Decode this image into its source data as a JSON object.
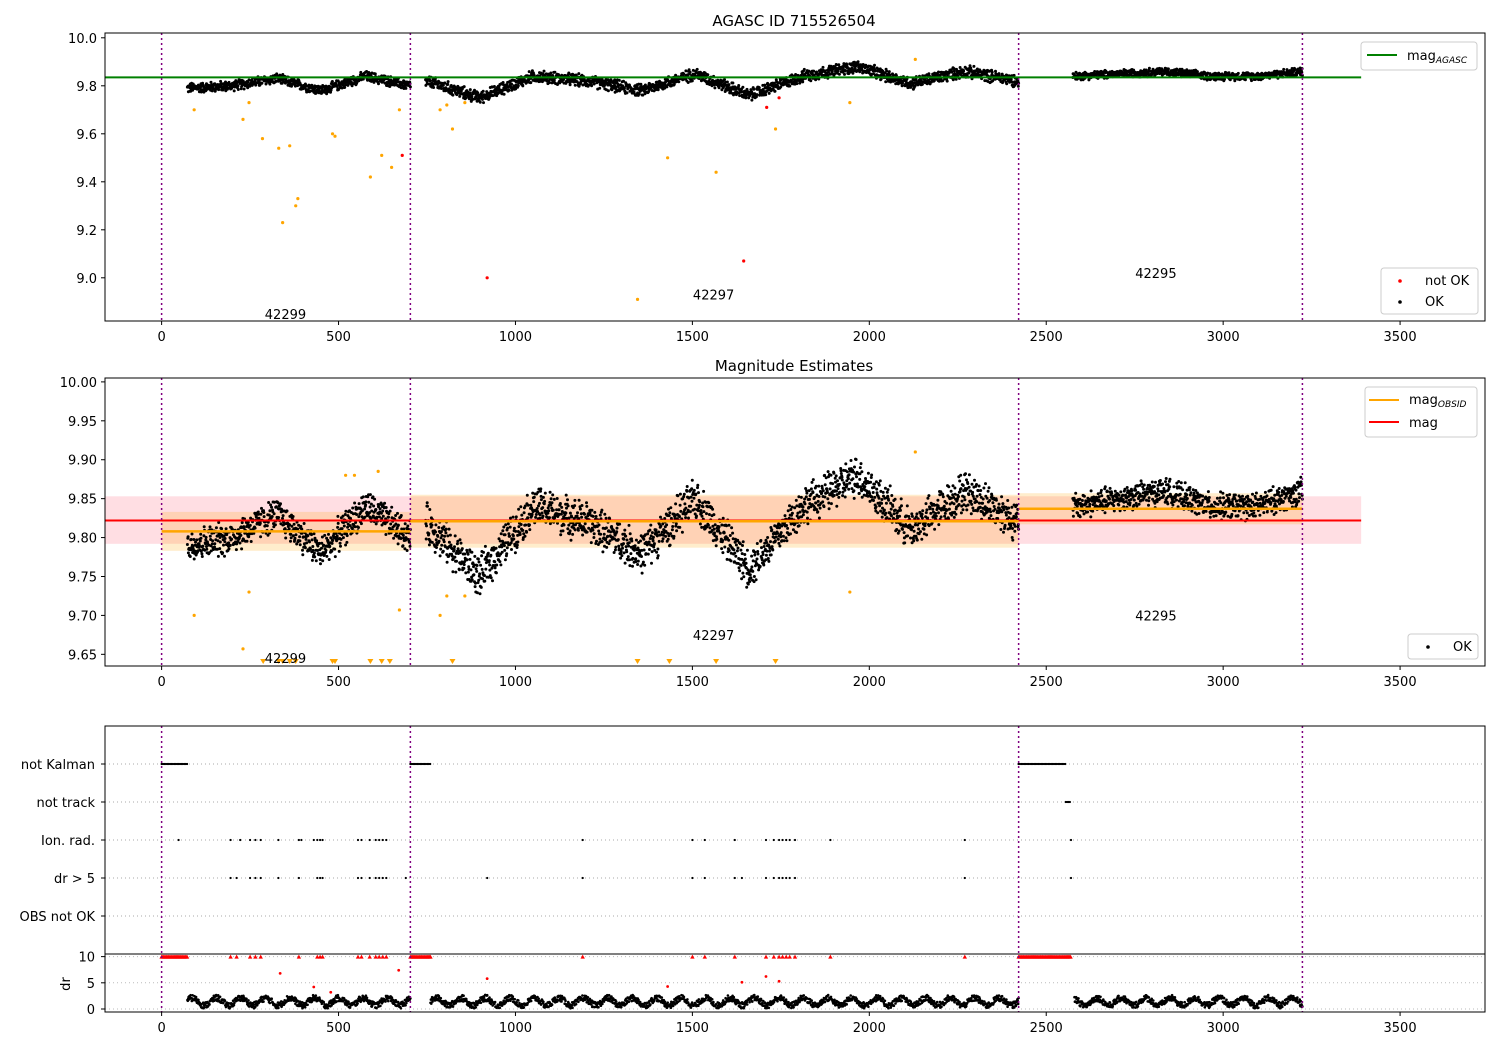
{
  "chart_data": [
    {
      "type": "scatter",
      "title": "AGASC ID 715526504",
      "xlim": [
        -160,
        3740
      ],
      "ylim": [
        8.82,
        10.02
      ],
      "xticks": [
        0,
        500,
        1000,
        1500,
        2000,
        2500,
        3000,
        3500
      ],
      "yticks": [
        9.0,
        9.2,
        9.4,
        9.6,
        9.8,
        10.0
      ],
      "ytick_format": 1,
      "obs_boundaries": [
        0,
        703,
        2422,
        3224
      ],
      "obsids": [
        {
          "label": "42299",
          "x": 350,
          "y": 8.85
        },
        {
          "label": "42297",
          "x": 1560,
          "y": 8.93
        },
        {
          "label": "42295",
          "x": 2810,
          "y": 9.02
        }
      ],
      "mag_agasc": {
        "value": 9.835,
        "x_range": [
          -160,
          3390
        ]
      },
      "legend_upper": [
        {
          "label": "mag",
          "sub": "AGASC",
          "color": "#008000"
        }
      ],
      "legend_lower": [
        {
          "label": "not OK",
          "color": "#ff0000"
        },
        {
          "label": "OK",
          "color": "#000000"
        }
      ],
      "series": [
        {
          "name": "OK",
          "color": "#000000",
          "segments": [
            {
              "x": [
                73,
                703
              ],
              "base": [
                9.79,
                9.8,
                9.83,
                9.78,
                9.84,
                9.8
              ],
              "scatter": 0.025
            },
            {
              "x": [
                746,
                2422
              ],
              "base": [
                9.82,
                9.75,
                9.84,
                9.82,
                9.78,
                9.85,
                9.76,
                9.84,
                9.88,
                9.81,
                9.86,
                9.82
              ],
              "scatter": 0.03
            },
            {
              "x": [
                2575,
                3224
              ],
              "base": [
                9.84,
                9.85,
                9.86,
                9.84,
                9.84,
                9.86
              ],
              "scatter": 0.02
            }
          ]
        },
        {
          "name": "not OK",
          "color": "#ff0000",
          "x": [
            920,
            1645,
            1710,
            1745,
            680
          ],
          "y": [
            9.0,
            9.07,
            9.71,
            9.75,
            9.51
          ]
        },
        {
          "name": "outliers",
          "color": "#ffa500",
          "x": [
            92,
            230,
            247,
            285,
            331,
            342,
            362,
            379,
            385,
            483,
            490,
            590,
            622,
            650,
            672,
            787,
            806,
            822,
            857,
            1345,
            1430,
            1567,
            1735,
            1945,
            2130
          ],
          "y": [
            9.7,
            9.66,
            9.73,
            9.58,
            9.54,
            9.23,
            9.55,
            9.3,
            9.33,
            9.6,
            9.59,
            9.42,
            9.51,
            9.46,
            9.7,
            9.7,
            9.72,
            9.62,
            9.73,
            8.91,
            9.5,
            9.44,
            9.62,
            9.73,
            9.91
          ]
        }
      ]
    },
    {
      "type": "scatter",
      "title": "Magnitude Estimates",
      "xlim": [
        -160,
        3740
      ],
      "ylim": [
        9.635,
        10.005
      ],
      "xticks": [
        0,
        500,
        1000,
        1500,
        2000,
        2500,
        3000,
        3500
      ],
      "yticks": [
        9.65,
        9.7,
        9.75,
        9.8,
        9.85,
        9.9,
        9.95,
        10.0
      ],
      "ytick_format": 2,
      "obs_boundaries": [
        0,
        703,
        2422,
        3224
      ],
      "obsids": [
        {
          "label": "42299",
          "x": 350,
          "y": 9.645
        },
        {
          "label": "42297",
          "x": 1560,
          "y": 9.675
        },
        {
          "label": "42295",
          "x": 2810,
          "y": 9.7
        }
      ],
      "mag": {
        "value": 9.822,
        "band": [
          9.792,
          9.853
        ],
        "x_range": [
          -160,
          3390
        ]
      },
      "mag_obsid": [
        {
          "x": [
            0,
            703
          ],
          "value": 9.808,
          "band": [
            9.783,
            9.833
          ]
        },
        {
          "x": [
            703,
            2422
          ],
          "value": 9.821,
          "band": [
            9.787,
            9.855
          ]
        },
        {
          "x": [
            2422,
            3224
          ],
          "value": 9.837,
          "band": [
            9.817,
            9.857
          ]
        }
      ],
      "legend_upper": [
        {
          "label": "mag",
          "sub": "OBSID",
          "color": "#ffa500"
        },
        {
          "label": "mag",
          "sub": "",
          "color": "#ff0000"
        }
      ],
      "legend_lower": [
        {
          "label": "OK",
          "color": "#000000"
        }
      ],
      "series": [
        {
          "name": "OK",
          "color": "#000000",
          "segments": [
            {
              "x": [
                73,
                703
              ],
              "base": [
                9.79,
                9.8,
                9.83,
                9.78,
                9.84,
                9.8
              ],
              "scatter": 0.025
            },
            {
              "x": [
                746,
                2422
              ],
              "base": [
                9.82,
                9.75,
                9.84,
                9.82,
                9.78,
                9.85,
                9.76,
                9.84,
                9.88,
                9.81,
                9.86,
                9.82
              ],
              "scatter": 0.03
            },
            {
              "x": [
                2575,
                3224
              ],
              "base": [
                9.84,
                9.85,
                9.86,
                9.84,
                9.84,
                9.86
              ],
              "scatter": 0.02
            }
          ]
        },
        {
          "name": "outliers",
          "color": "#ffa500",
          "x": [
            92,
            230,
            247,
            520,
            545,
            612,
            672,
            787,
            806,
            857,
            1945,
            2130
          ],
          "y": [
            9.7,
            9.657,
            9.73,
            9.88,
            9.88,
            9.885,
            9.707,
            9.7,
            9.725,
            9.725,
            9.73,
            9.91
          ]
        },
        {
          "name": "below range",
          "color": "#ffa500",
          "marker": "triangle",
          "x": [
            287,
            331,
            342,
            362,
            379,
            483,
            490,
            590,
            622,
            645,
            822,
            1345,
            1435,
            1567,
            1735
          ]
        }
      ]
    },
    {
      "type": "scatter",
      "title": "",
      "xlim": [
        -160,
        3740
      ],
      "xticks": [
        0,
        500,
        1000,
        1500,
        2000,
        2500,
        3000,
        3500
      ],
      "obs_boundaries": [
        0,
        703,
        2422,
        3224
      ],
      "flag_labels": [
        "not Kalman",
        "not track",
        "Ion. rad.",
        "dr > 5",
        "OBS not OK"
      ],
      "flags": [
        {
          "label": "not Kalman",
          "ranges": [
            [
              0,
              73
            ],
            [
              703,
              760
            ],
            [
              2422,
              2555
            ]
          ]
        },
        {
          "label": "not track",
          "ranges": [
            [
              2555,
              2570
            ]
          ]
        },
        {
          "label": "Ion. rad.",
          "x": [
            48,
            195,
            222,
            250,
            265,
            280,
            330,
            388,
            395,
            430,
            440,
            448,
            455,
            555,
            565,
            588,
            605,
            615,
            625,
            635,
            1190,
            1500,
            1535,
            1620,
            1708,
            1730,
            1745,
            1755,
            1765,
            1775,
            1790,
            1890,
            2270,
            2570
          ]
        },
        {
          "label": "dr > 5",
          "x": [
            195,
            212,
            250,
            265,
            280,
            330,
            388,
            440,
            448,
            455,
            555,
            565,
            588,
            605,
            615,
            625,
            635,
            690,
            920,
            1190,
            1500,
            1535,
            1620,
            1640,
            1708,
            1730,
            1745,
            1755,
            1765,
            1775,
            1790,
            2270,
            2570
          ]
        },
        {
          "label": "OBS not OK",
          "x": []
        }
      ],
      "dr": {
        "ylabel": "dr",
        "ylim": [
          0,
          10.5
        ],
        "yticks": [
          0,
          5,
          10
        ],
        "high_value": 10,
        "high_ranges": [
          [
            0,
            73
          ],
          [
            703,
            760
          ],
          [
            2422,
            2570
          ]
        ],
        "high_points": [
          195,
          212,
          250,
          265,
          280,
          388,
          440,
          448,
          455,
          555,
          565,
          588,
          605,
          615,
          625,
          635,
          1190,
          1500,
          1535,
          1620,
          1708,
          1730,
          1745,
          1755,
          1765,
          1775,
          1790,
          1890,
          2270
        ],
        "segments": [
          [
            73,
            703
          ],
          [
            760,
            2422
          ],
          [
            2580,
            3224
          ]
        ],
        "base": 1.4,
        "red_x": [
          335,
          430,
          478,
          920,
          1430,
          1640,
          1708,
          1745,
          670
        ],
        "red_y": [
          6.8,
          4.2,
          3.2,
          5.8,
          4.3,
          5.1,
          6.2,
          5.3,
          7.4
        ]
      }
    }
  ]
}
